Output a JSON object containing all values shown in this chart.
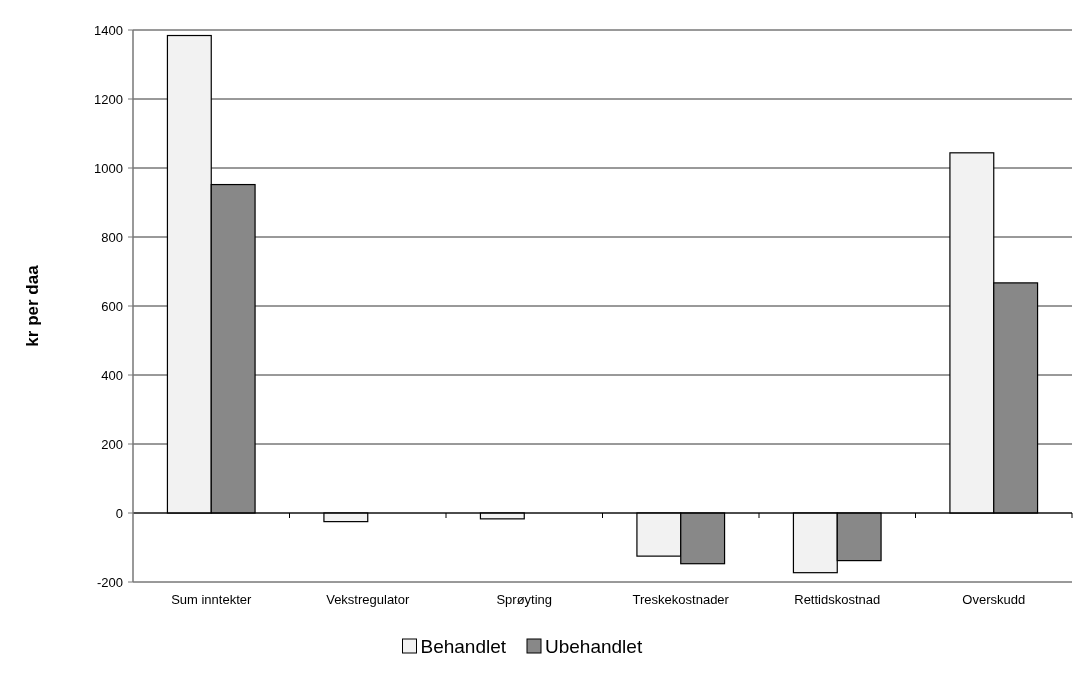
{
  "chart_data": {
    "type": "bar",
    "ylabel": "kr per daa",
    "categories": [
      "Sum inntekter",
      "Vekstregulator",
      "Sprøyting",
      "Treskekostnader",
      "Rettidskostnad",
      "Overskudd"
    ],
    "series": [
      {
        "name": "Behandlet",
        "color": "#f2f2f2",
        "values": [
          1384,
          -25,
          -17,
          -125,
          -173,
          1044
        ]
      },
      {
        "name": "Ubehandlet",
        "color": "#888888",
        "values": [
          952,
          0,
          0,
          -147,
          -138,
          667
        ]
      }
    ],
    "ylim": [
      -200,
      1400
    ],
    "yticks": [
      -200,
      0,
      200,
      400,
      600,
      800,
      1000,
      1200,
      1400
    ],
    "grid": "y",
    "legend": "bottom"
  }
}
